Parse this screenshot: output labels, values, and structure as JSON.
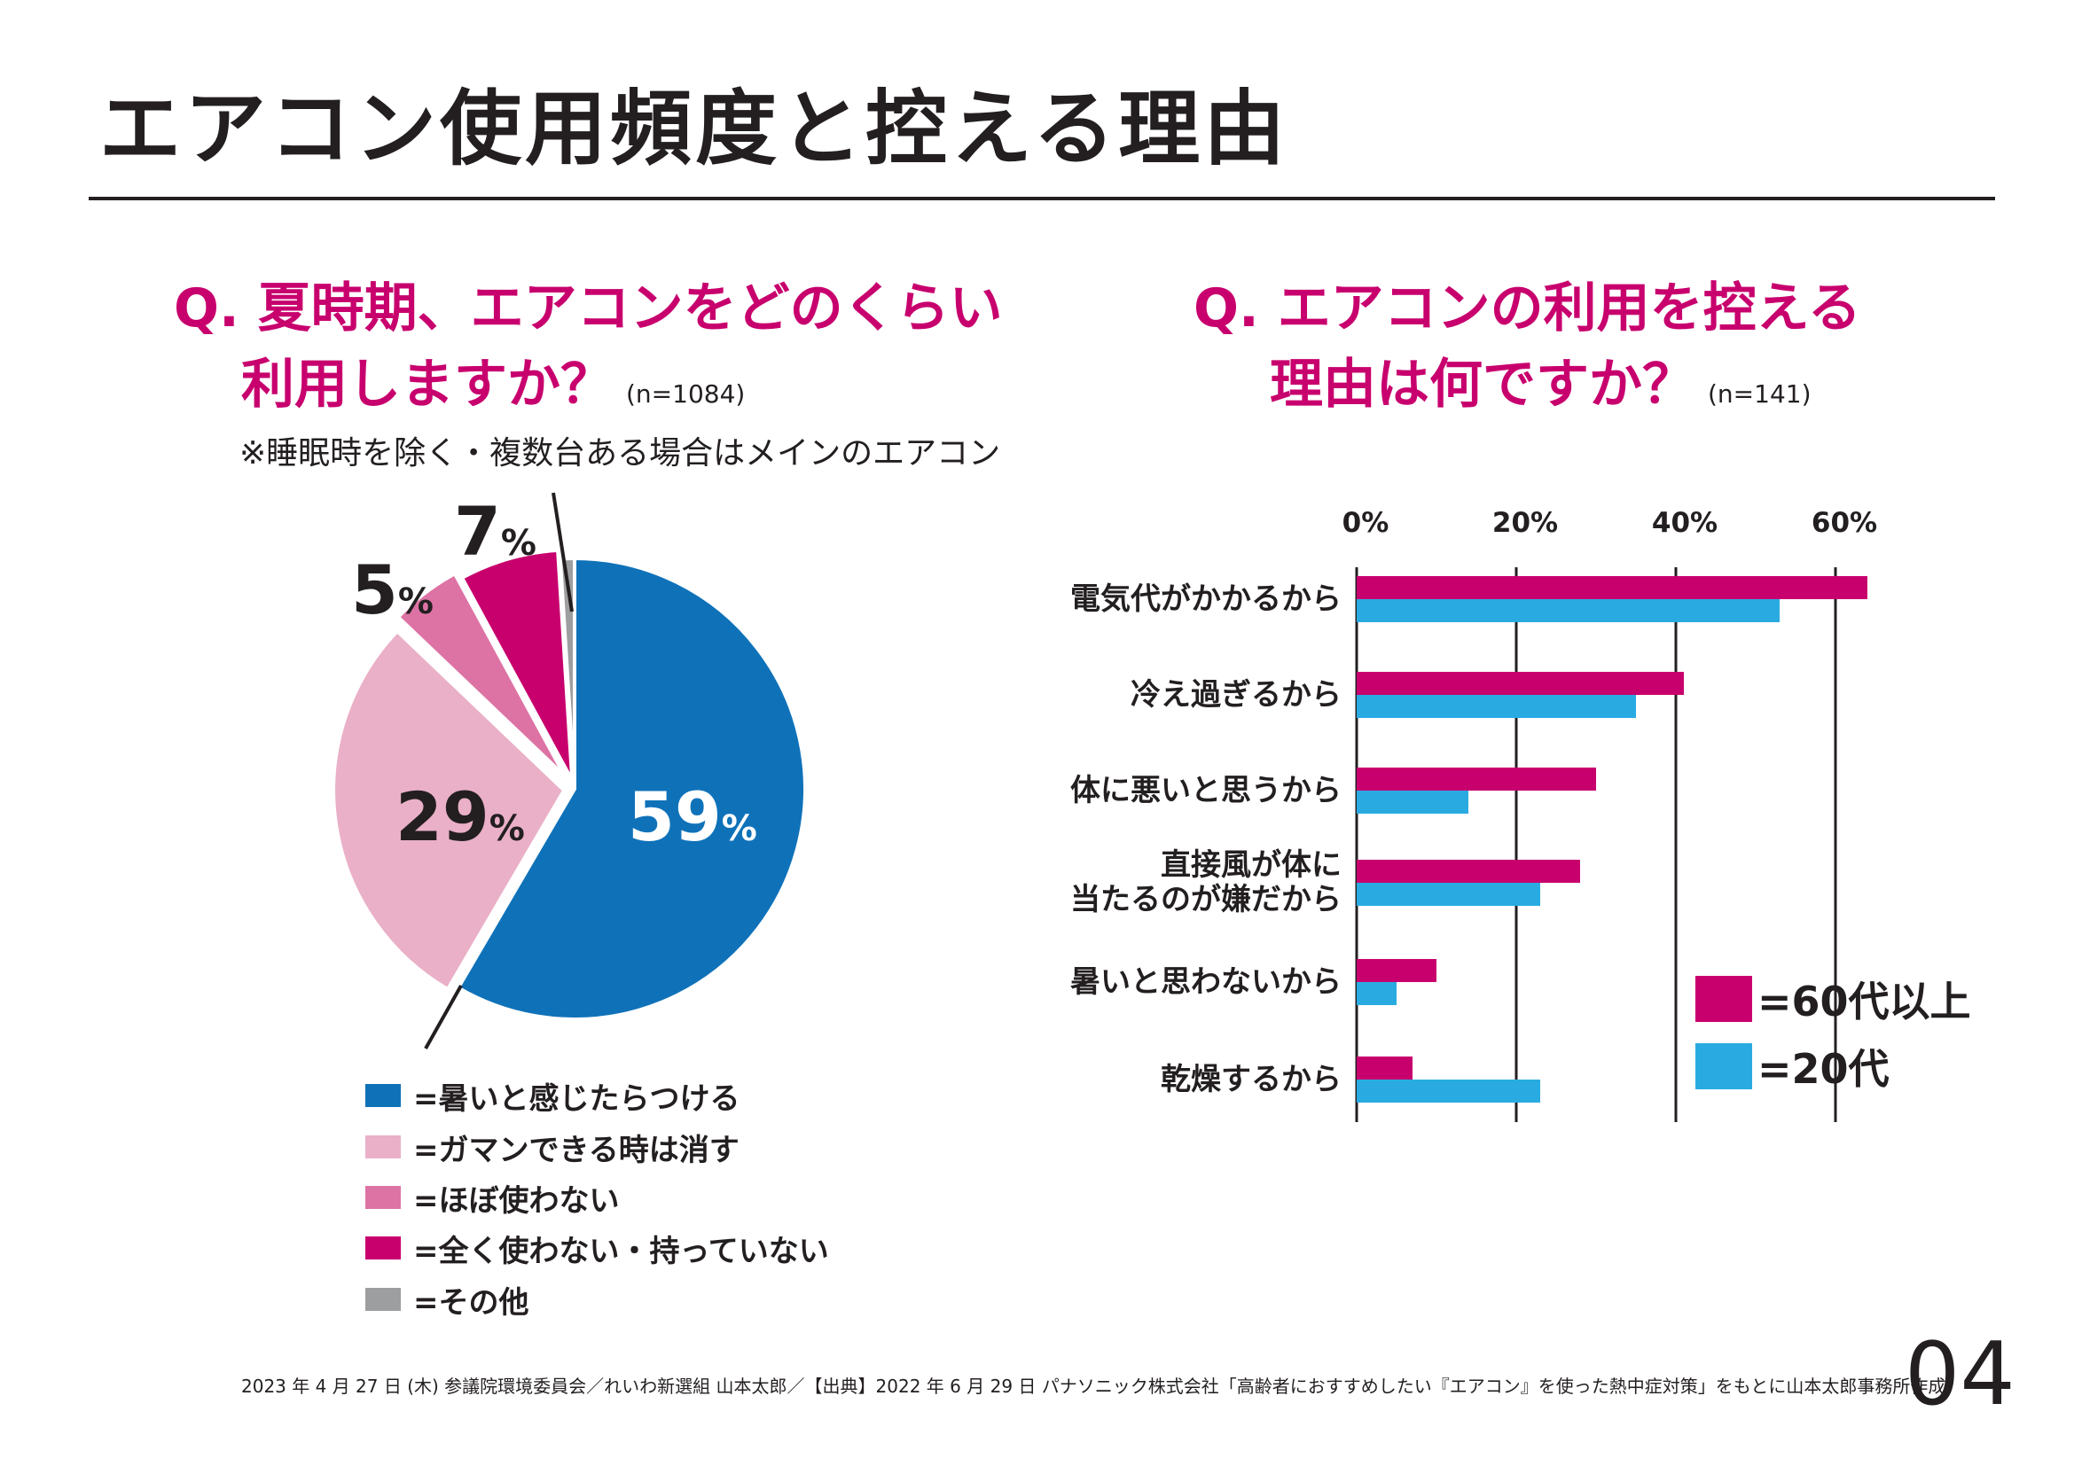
{
  "page_title": "エアコン使用頻度と控える理由",
  "left": {
    "question_line1": "Q. 夏時期、エアコンをどのくらい",
    "question_line2": "利用しますか？",
    "n": "(n=1084)",
    "note": "※睡眠時を除く・複数台ある場合はメインのエアコン"
  },
  "right": {
    "question_line1": "Q. エアコンの利用を控える",
    "question_line2": "理由は何ですか？",
    "n": "(n=141)"
  },
  "chart_data": [
    {
      "type": "pie",
      "slices": [
        {
          "label": "=暑いと感じたらつける",
          "value": 59,
          "color": "#0f72b9"
        },
        {
          "label": "=ガマンできる時は消す",
          "value": 29,
          "color": "#eab0c7"
        },
        {
          "label": "=ほぼ使わない",
          "value": 5,
          "color": "#dd73a4"
        },
        {
          "label": "=全く使わない・持っていない",
          "value": 7,
          "color": "#c8006e"
        },
        {
          "label": "=その他",
          "value": 1,
          "color": "#9d9ea0"
        }
      ],
      "data_labels": [
        {
          "number": "59",
          "unit": "%"
        },
        {
          "number": "29",
          "unit": "%"
        },
        {
          "number": "5",
          "unit": "%"
        },
        {
          "number": "7",
          "unit": "%"
        }
      ]
    },
    {
      "type": "bar",
      "orientation": "horizontal",
      "categories": [
        "電気代がかかるから",
        "冷え過ぎるから",
        "体に悪いと思うから",
        "直接風が体に当たるのが嫌だから",
        "暑いと思わないから",
        "乾燥するから"
      ],
      "category_lines": [
        [
          "電気代がかかるから"
        ],
        [
          "冷え過ぎるから"
        ],
        [
          "体に悪いと思うから"
        ],
        [
          "直接風が体に",
          "当たるのが嫌だから"
        ],
        [
          "暑いと思わないから"
        ],
        [
          "乾燥するから"
        ]
      ],
      "series": [
        {
          "name": "=60代以上",
          "color": "#c8006e",
          "values": [
            64,
            41,
            30,
            28,
            10,
            7
          ]
        },
        {
          "name": "=20代",
          "color": "#29abe2",
          "values": [
            53,
            35,
            14,
            23,
            5,
            23
          ]
        }
      ],
      "xlim": [
        0,
        64
      ],
      "xticks": [
        0,
        20,
        40,
        60
      ],
      "xtick_labels": [
        "0%",
        "20%",
        "40%",
        "60%"
      ],
      "grid": true,
      "legend_position": "bottom-right"
    }
  ],
  "footer": "2023 年 4 月 27 日 (木) 参議院環境委員会／れいわ新選組 山本太郎／【出典】2022 年 6 月 29 日 パナソニック株式会社「高齢者におすすめしたい『エアコン』を使った熱中症対策」をもとに山本太郎事務所作成",
  "page_number": "04"
}
